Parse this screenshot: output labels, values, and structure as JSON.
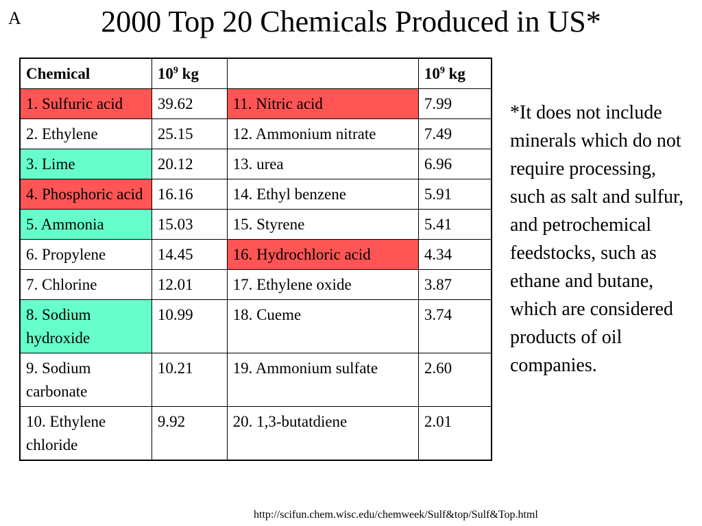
{
  "slide": {
    "corner_letter": "A",
    "title": "2000 Top 20 Chemicals Produced in US*",
    "note": "*It does not include minerals which do not require processing, such as salt and sulfur, and petrochemical feedstocks, such as ethane and butane, which are considered products of oil companies.",
    "source": "http://scifun.chem.wisc.edu/chemweek/Sulf&top/Sulf&Top.html"
  },
  "table": {
    "headers": {
      "chemical": "Chemical",
      "unit_base": "10",
      "unit_exp": "9",
      "unit_suffix": " kg",
      "col3": ""
    },
    "highlight_colors": {
      "red": "#ff5555",
      "green": "#66ffcc"
    },
    "rows": [
      {
        "left_name": "1. Sulfuric acid",
        "left_value": "39.62",
        "left_color": "red",
        "right_name": "11.  Nitric acid",
        "right_value": "7.99",
        "right_color": "red"
      },
      {
        "left_name": "2. Ethylene",
        "left_value": "25.15",
        "left_color": "",
        "right_name": "12. Ammonium nitrate",
        "right_value": "7.49",
        "right_color": ""
      },
      {
        "left_name": "3. Lime",
        "left_value": "20.12",
        "left_color": "green",
        "right_name": "13. urea",
        "right_value": "6.96",
        "right_color": ""
      },
      {
        "left_name": "4. Phosphoric acid",
        "left_value": "16.16",
        "left_color": "red",
        "right_name": "14. Ethyl benzene",
        "right_value": "5.91",
        "right_color": ""
      },
      {
        "left_name": "5. Ammonia",
        "left_value": "15.03",
        "left_color": "green",
        "right_name": "15.  Styrene",
        "right_value": "5.41",
        "right_color": ""
      },
      {
        "left_name": "6. Propylene",
        "left_value": "14.45",
        "left_color": "",
        "right_name": "16.   Hydrochloric acid",
        "right_value": "4.34",
        "right_color": "red"
      },
      {
        "left_name": "7. Chlorine",
        "left_value": "12.01",
        "left_color": "",
        "right_name": "17.  Ethylene oxide",
        "right_value": "3.87",
        "right_color": ""
      },
      {
        "left_name": "8.  Sodium hydroxide",
        "left_value": "10.99",
        "left_color": "green",
        "right_name": "18.  Cueme",
        "right_value": "3.74",
        "right_color": ""
      },
      {
        "left_name": "9. Sodium carbonate",
        "left_value": "10.21",
        "left_color": "",
        "right_name": "19. Ammonium sulfate",
        "right_value": "2.60",
        "right_color": ""
      },
      {
        "left_name": "10. Ethylene chloride",
        "left_value": "9.92",
        "left_color": "",
        "right_name": "20. 1,3-butatdiene",
        "right_value": "2.01",
        "right_color": ""
      }
    ]
  }
}
